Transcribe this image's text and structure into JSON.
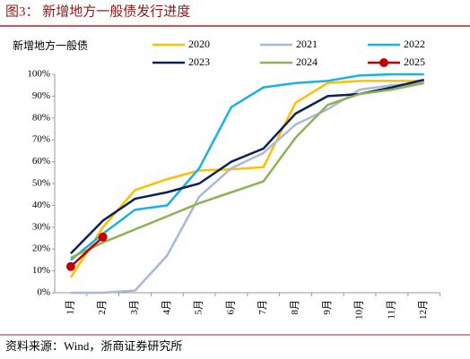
{
  "chart_data": {
    "type": "line",
    "title": "图3：  新增地方一般债发行进度",
    "ylabel": "新增地方一般债",
    "source": "资料来源：Wind，浙商证券研究所",
    "categories": [
      "1月",
      "2月",
      "3月",
      "4月",
      "5月",
      "6月",
      "7月",
      "8月",
      "9月",
      "10月",
      "11月",
      "12月"
    ],
    "series": [
      {
        "name": "2020",
        "color": "#FFC000",
        "values": [
          7,
          30,
          47,
          52,
          56,
          56.5,
          57.5,
          87,
          96,
          97,
          97,
          97
        ]
      },
      {
        "name": "2021",
        "color": "#A9B8D9",
        "values": [
          0,
          0,
          1,
          17,
          44,
          57,
          64,
          77,
          84,
          93,
          95,
          96
        ]
      },
      {
        "name": "2022",
        "color": "#1CB0E8",
        "values": [
          15,
          27,
          38,
          40,
          57,
          85,
          94,
          96,
          97,
          99.5,
          100,
          100
        ]
      },
      {
        "name": "2023",
        "color": "#0D2254",
        "values": [
          18,
          33,
          43,
          46,
          50,
          60,
          66,
          82,
          90,
          91,
          94,
          97.5
        ]
      },
      {
        "name": "2024",
        "color": "#8DB255",
        "values": [
          16,
          23,
          29,
          35,
          41,
          46,
          51,
          71,
          86,
          91,
          93,
          96
        ]
      },
      {
        "name": "2025",
        "color": "#C00000",
        "marker": "circle",
        "values": [
          12,
          25.5,
          null,
          null,
          null,
          null,
          null,
          null,
          null,
          null,
          null,
          null
        ]
      }
    ],
    "ylim": [
      0,
      100
    ],
    "yticks": [
      {
        "value": 0,
        "label": "0%"
      },
      {
        "value": 10,
        "label": "10%"
      },
      {
        "value": 20,
        "label": "20%"
      },
      {
        "value": 30,
        "label": "30%"
      },
      {
        "value": 40,
        "label": "40%"
      },
      {
        "value": 50,
        "label": "50%"
      },
      {
        "value": 60,
        "label": "60%"
      },
      {
        "value": 70,
        "label": "70%"
      },
      {
        "value": 80,
        "label": "80%"
      },
      {
        "value": 90,
        "label": "90%"
      },
      {
        "value": 100,
        "label": "100%"
      }
    ],
    "grid": false
  }
}
